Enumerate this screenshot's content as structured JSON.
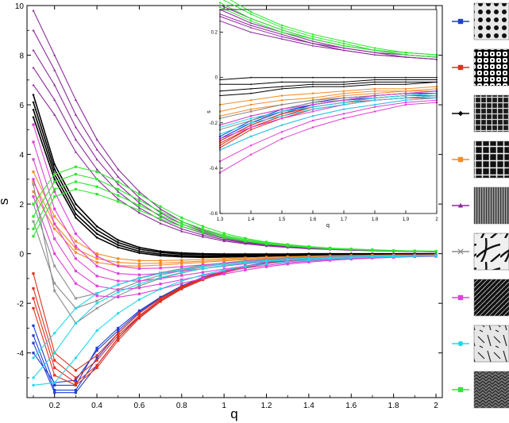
{
  "chart_data": {
    "type": "line",
    "xlabel": "q",
    "ylabel": "s",
    "xlim": [
      0.07,
      2.03
    ],
    "ylim": [
      -5.8,
      10
    ],
    "xticks": [
      0.2,
      0.4,
      0.6,
      0.8,
      1,
      1.2,
      1.4,
      1.6,
      1.8,
      2
    ],
    "xtick_labels": [
      "0.2",
      "0.4",
      "0.6",
      "0.8",
      "1",
      "1.2",
      "1.4",
      "1.6",
      "1.8",
      "2"
    ],
    "yticks": [
      -4,
      -2,
      0,
      2,
      4,
      6,
      8,
      10
    ],
    "ytick_labels": [
      "-4",
      "-2",
      "0",
      "2",
      "4",
      "6",
      "8",
      "10"
    ],
    "x": [
      0.1,
      0.2,
      0.3,
      0.4,
      0.5,
      0.6,
      0.7,
      0.8,
      0.9,
      1.0,
      1.1,
      1.2,
      1.3,
      1.4,
      1.5,
      1.6,
      1.7,
      1.8,
      1.9,
      2.0
    ],
    "series": [
      {
        "key": "blue",
        "color": "#1f3fd6",
        "marker": "square",
        "curves": [
          [
            -2.9,
            -5.3,
            -5.3,
            -3.8,
            -3.0,
            -2.3,
            -1.75,
            -1.3,
            -0.95,
            -0.7,
            -0.5,
            -0.36,
            -0.26,
            -0.19,
            -0.14,
            -0.11,
            -0.09,
            -0.08,
            -0.07,
            -0.07
          ],
          [
            -3.3,
            -5.5,
            -5.5,
            -4.2,
            -3.2,
            -2.4,
            -1.8,
            -1.35,
            -1.0,
            -0.72,
            -0.52,
            -0.38,
            -0.27,
            -0.2,
            -0.15,
            -0.12,
            -0.1,
            -0.09,
            -0.08,
            -0.07
          ],
          [
            -3.6,
            -5.6,
            -5.6,
            -4.5,
            -3.4,
            -2.5,
            -1.85,
            -1.38,
            -1.02,
            -0.74,
            -0.53,
            -0.39,
            -0.28,
            -0.21,
            -0.16,
            -0.12,
            -0.1,
            -0.09,
            -0.08,
            -0.08
          ],
          [
            -4.0,
            -5.2,
            -5.1,
            -3.9,
            -3.1,
            -2.35,
            -1.78,
            -1.33,
            -0.98,
            -0.71,
            -0.51,
            -0.37,
            -0.27,
            -0.2,
            -0.15,
            -0.12,
            -0.1,
            -0.08,
            -0.07,
            -0.07
          ]
        ]
      },
      {
        "key": "red",
        "color": "#e03020",
        "marker": "square",
        "curves": [
          [
            -0.8,
            -4.0,
            -4.7,
            -4.1,
            -3.2,
            -2.4,
            -1.8,
            -1.33,
            -0.98,
            -0.71,
            -0.52,
            -0.38,
            -0.28,
            -0.21,
            -0.16,
            -0.13,
            -0.11,
            -0.09,
            -0.08,
            -0.08
          ],
          [
            -1.4,
            -4.3,
            -5.0,
            -4.3,
            -3.3,
            -2.5,
            -1.85,
            -1.37,
            -1.0,
            -0.73,
            -0.53,
            -0.39,
            -0.29,
            -0.22,
            -0.17,
            -0.13,
            -0.11,
            -0.1,
            -0.09,
            -0.08
          ],
          [
            -1.8,
            -4.6,
            -5.2,
            -4.5,
            -3.4,
            -2.55,
            -1.9,
            -1.4,
            -1.03,
            -0.75,
            -0.55,
            -0.4,
            -0.3,
            -0.22,
            -0.17,
            -0.14,
            -0.12,
            -0.1,
            -0.09,
            -0.09
          ],
          [
            -2.2,
            -4.9,
            -5.3,
            -4.6,
            -3.5,
            -2.6,
            -1.93,
            -1.42,
            -1.05,
            -0.77,
            -0.56,
            -0.41,
            -0.31,
            -0.23,
            -0.18,
            -0.14,
            -0.12,
            -0.1,
            -0.09,
            -0.09
          ]
        ]
      },
      {
        "key": "black",
        "color": "#000000",
        "marker": "diamond",
        "curves": [
          [
            6.4,
            3.6,
            2.0,
            1.1,
            0.55,
            0.25,
            0.1,
            0.03,
            0.0,
            -0.01,
            -0.01,
            -0.01,
            -0.01,
            0.0,
            0.0,
            0.0,
            0.0,
            0.0,
            0.0,
            0.0
          ],
          [
            6.1,
            3.4,
            1.8,
            0.95,
            0.45,
            0.18,
            0.05,
            -0.02,
            -0.04,
            -0.05,
            -0.05,
            -0.04,
            -0.03,
            -0.03,
            -0.02,
            -0.02,
            -0.02,
            -0.01,
            -0.01,
            -0.01
          ],
          [
            5.8,
            3.2,
            1.6,
            0.8,
            0.35,
            0.1,
            -0.02,
            -0.08,
            -0.1,
            -0.1,
            -0.09,
            -0.08,
            -0.06,
            -0.05,
            -0.04,
            -0.03,
            -0.03,
            -0.02,
            -0.02,
            -0.02
          ],
          [
            5.5,
            3.0,
            1.45,
            0.65,
            0.25,
            0.03,
            -0.08,
            -0.13,
            -0.15,
            -0.14,
            -0.12,
            -0.1,
            -0.08,
            -0.07,
            -0.05,
            -0.04,
            -0.04,
            -0.03,
            -0.03,
            -0.02
          ]
        ]
      },
      {
        "key": "orange",
        "color": "#f28c28",
        "marker": "square",
        "curves": [
          [
            3.3,
            1.5,
            0.5,
            0.0,
            -0.2,
            -0.28,
            -0.28,
            -0.26,
            -0.23,
            -0.2,
            -0.17,
            -0.14,
            -0.12,
            -0.1,
            -0.08,
            -0.07,
            -0.06,
            -0.05,
            -0.05,
            -0.04
          ],
          [
            2.9,
            1.2,
            0.2,
            -0.2,
            -0.35,
            -0.4,
            -0.38,
            -0.34,
            -0.3,
            -0.25,
            -0.21,
            -0.18,
            -0.15,
            -0.12,
            -0.1,
            -0.09,
            -0.07,
            -0.06,
            -0.06,
            -0.05
          ],
          [
            2.5,
            1.0,
            0.05,
            -0.35,
            -0.48,
            -0.5,
            -0.46,
            -0.4,
            -0.35,
            -0.29,
            -0.24,
            -0.2,
            -0.17,
            -0.14,
            -0.12,
            -0.1,
            -0.08,
            -0.07,
            -0.06,
            -0.06
          ]
        ]
      },
      {
        "key": "purple",
        "color": "#8b2a9b",
        "marker": "triangle",
        "curves": [
          [
            9.8,
            8.0,
            6.2,
            4.6,
            3.4,
            2.5,
            1.8,
            1.3,
            0.95,
            0.7,
            0.52,
            0.4,
            0.32,
            0.26,
            0.21,
            0.17,
            0.14,
            0.12,
            0.1,
            0.09
          ],
          [
            9.0,
            7.4,
            5.6,
            4.2,
            3.1,
            2.25,
            1.65,
            1.2,
            0.88,
            0.65,
            0.49,
            0.38,
            0.3,
            0.24,
            0.2,
            0.16,
            0.13,
            0.11,
            0.1,
            0.09
          ],
          [
            8.2,
            6.8,
            5.1,
            3.8,
            2.8,
            2.05,
            1.5,
            1.1,
            0.82,
            0.61,
            0.46,
            0.36,
            0.28,
            0.23,
            0.19,
            0.15,
            0.13,
            0.11,
            0.09,
            0.08
          ],
          [
            7.5,
            6.2,
            4.6,
            3.4,
            2.5,
            1.85,
            1.36,
            1.0,
            0.75,
            0.56,
            0.43,
            0.34,
            0.27,
            0.22,
            0.18,
            0.15,
            0.12,
            0.1,
            0.09,
            0.08
          ],
          [
            6.8,
            5.6,
            4.1,
            3.0,
            2.2,
            1.65,
            1.22,
            0.9,
            0.68,
            0.51,
            0.4,
            0.31,
            0.25,
            0.2,
            0.17,
            0.14,
            0.12,
            0.1,
            0.09,
            0.08
          ]
        ]
      },
      {
        "key": "gray",
        "color": "#8a8a8a",
        "marker": "x",
        "curves": [
          [
            2.8,
            -1.5,
            -2.8,
            -2.2,
            -1.7,
            -1.3,
            -1.0,
            -0.78,
            -0.6,
            -0.47,
            -0.37,
            -0.29,
            -0.23,
            -0.19,
            -0.15,
            -0.13,
            -0.11,
            -0.09,
            -0.08,
            -0.07
          ],
          [
            2.0,
            -0.5,
            -1.8,
            -1.6,
            -1.25,
            -0.98,
            -0.77,
            -0.6,
            -0.47,
            -0.37,
            -0.29,
            -0.23,
            -0.18,
            -0.15,
            -0.12,
            -0.1,
            -0.09,
            -0.08,
            -0.07,
            -0.06
          ],
          [
            1.3,
            -1.2,
            -2.2,
            -1.9,
            -1.45,
            -1.12,
            -0.87,
            -0.68,
            -0.53,
            -0.42,
            -0.33,
            -0.26,
            -0.21,
            -0.17,
            -0.14,
            -0.11,
            -0.1,
            -0.08,
            -0.07,
            -0.06
          ]
        ]
      },
      {
        "key": "magenta",
        "color": "#e040d8",
        "marker": "square",
        "curves": [
          [
            5.2,
            2.5,
            0.8,
            -0.1,
            -0.5,
            -0.6,
            -0.58,
            -0.52,
            -0.45,
            -0.38,
            -0.31,
            -0.26,
            -0.21,
            -0.17,
            -0.14,
            -0.12,
            -0.1,
            -0.08,
            -0.07,
            -0.06
          ],
          [
            4.5,
            1.8,
            0.3,
            -0.5,
            -0.8,
            -0.85,
            -0.8,
            -0.7,
            -0.6,
            -0.5,
            -0.41,
            -0.33,
            -0.27,
            -0.22,
            -0.18,
            -0.15,
            -0.12,
            -0.1,
            -0.09,
            -0.08
          ],
          [
            3.8,
            1.2,
            -0.2,
            -0.9,
            -1.1,
            -1.1,
            -1.0,
            -0.88,
            -0.75,
            -0.62,
            -0.5,
            -0.4,
            -0.32,
            -0.26,
            -0.21,
            -0.17,
            -0.14,
            -0.12,
            -0.1,
            -0.09
          ],
          [
            3.0,
            0.6,
            -0.7,
            -1.3,
            -1.45,
            -1.38,
            -1.22,
            -1.05,
            -0.88,
            -0.72,
            -0.58,
            -0.47,
            -0.37,
            -0.3,
            -0.24,
            -0.19,
            -0.16,
            -0.13,
            -0.11,
            -0.1
          ],
          [
            2.3,
            0.0,
            -1.2,
            -1.7,
            -1.75,
            -1.62,
            -1.42,
            -1.2,
            -1.0,
            -0.82,
            -0.66,
            -0.53,
            -0.42,
            -0.34,
            -0.27,
            -0.22,
            -0.18,
            -0.15,
            -0.12,
            -0.11
          ]
        ]
      },
      {
        "key": "cyan",
        "color": "#20d8e8",
        "marker": "circle",
        "curves": [
          [
            -4.2,
            -3.2,
            -2.2,
            -1.6,
            -1.25,
            -1.0,
            -0.8,
            -0.64,
            -0.51,
            -0.41,
            -0.33,
            -0.27,
            -0.22,
            -0.18,
            -0.15,
            -0.13,
            -0.11,
            -0.09,
            -0.08,
            -0.07
          ],
          [
            -5.0,
            -4.0,
            -2.8,
            -2.0,
            -1.55,
            -1.22,
            -0.96,
            -0.76,
            -0.6,
            -0.48,
            -0.38,
            -0.31,
            -0.25,
            -0.2,
            -0.17,
            -0.14,
            -0.12,
            -0.1,
            -0.09,
            -0.08
          ],
          [
            -5.3,
            -5.2,
            -4.2,
            -3.1,
            -2.4,
            -1.85,
            -1.42,
            -1.1,
            -0.85,
            -0.66,
            -0.52,
            -0.41,
            -0.32,
            -0.26,
            -0.21,
            -0.17,
            -0.14,
            -0.12,
            -0.1,
            -0.09
          ]
        ]
      },
      {
        "key": "green",
        "color": "#2ee82e",
        "marker": "square",
        "curves": [
          [
            2.0,
            3.2,
            3.5,
            3.3,
            2.9,
            2.4,
            1.9,
            1.45,
            1.1,
            0.82,
            0.62,
            0.47,
            0.37,
            0.29,
            0.23,
            0.19,
            0.16,
            0.13,
            0.11,
            0.1
          ],
          [
            1.5,
            2.9,
            3.2,
            3.0,
            2.6,
            2.15,
            1.7,
            1.3,
            0.99,
            0.75,
            0.57,
            0.44,
            0.35,
            0.28,
            0.22,
            0.18,
            0.15,
            0.12,
            0.11,
            0.1
          ],
          [
            1.0,
            2.6,
            2.9,
            2.7,
            2.35,
            1.95,
            1.55,
            1.2,
            0.92,
            0.7,
            0.53,
            0.41,
            0.33,
            0.26,
            0.21,
            0.17,
            0.14,
            0.12,
            0.11,
            0.1
          ],
          [
            0.7,
            2.3,
            2.6,
            2.4,
            2.1,
            1.75,
            1.4,
            1.1,
            0.85,
            0.65,
            0.5,
            0.39,
            0.31,
            0.25,
            0.2,
            0.17,
            0.14,
            0.12,
            0.1,
            0.09
          ]
        ]
      }
    ],
    "inset": {
      "xlabel": "q",
      "ylabel": "s",
      "xlim": [
        1.3,
        2.0
      ],
      "ylim": [
        -0.6,
        0.3
      ],
      "xticks": [
        1.3,
        1.4,
        1.5,
        1.6,
        1.7,
        1.8,
        1.9,
        2.0
      ],
      "xtick_labels": [
        "1.3",
        "1.4",
        "1.5",
        "1.6",
        "1.7",
        "1.8",
        "1.9",
        "2"
      ],
      "yticks": [
        -0.6,
        -0.4,
        -0.2,
        0.0,
        0.2
      ],
      "ytick_labels": [
        "-0.6",
        "-0.4",
        "-0.2",
        "0",
        "0.2"
      ]
    },
    "legend": {
      "placement": "right",
      "items": [
        {
          "series": "blue",
          "texture": "circles"
        },
        {
          "series": "red",
          "texture": "weave"
        },
        {
          "series": "black",
          "texture": "weave-dark"
        },
        {
          "series": "orange",
          "texture": "mesh"
        },
        {
          "series": "purple",
          "texture": "striped"
        },
        {
          "series": "gray",
          "texture": "branches"
        },
        {
          "series": "magenta",
          "texture": "fibers"
        },
        {
          "series": "cyan",
          "texture": "sparse"
        },
        {
          "series": "green",
          "texture": "herringbone"
        }
      ]
    }
  }
}
